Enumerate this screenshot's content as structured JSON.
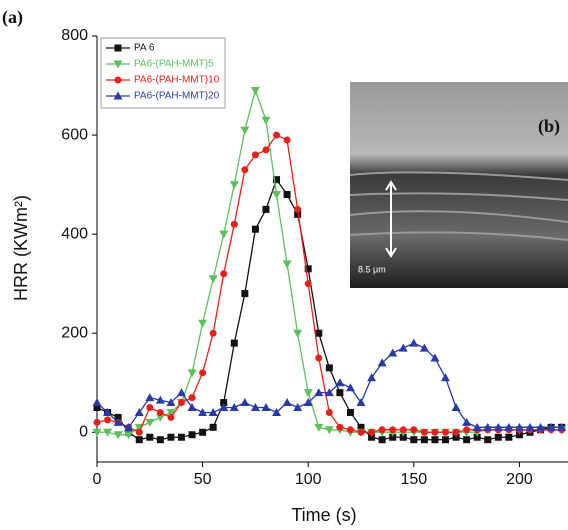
{
  "chart_data": {
    "type": "line",
    "panel_label": "(a)",
    "inset_label": "(b)",
    "inset_scale": "8.5 μm",
    "xlabel": "Time (s)",
    "ylabel": "HRR (KWm²)",
    "xlim": [
      0,
      223
    ],
    "ylim": [
      -60,
      800
    ],
    "xticks": [
      0,
      50,
      100,
      150,
      200
    ],
    "yticks": [
      0,
      200,
      400,
      600,
      800
    ],
    "x": [
      0,
      5,
      10,
      15,
      20,
      25,
      30,
      35,
      40,
      45,
      50,
      55,
      60,
      65,
      70,
      75,
      80,
      85,
      90,
      95,
      100,
      105,
      110,
      115,
      120,
      125,
      130,
      135,
      140,
      145,
      150,
      155,
      160,
      165,
      170,
      175,
      180,
      185,
      190,
      195,
      200,
      205,
      210,
      215,
      220
    ],
    "series": [
      {
        "name": "PA 6",
        "color": "#111111",
        "marker": "square",
        "values": [
          50,
          40,
          30,
          0,
          -15,
          -10,
          -15,
          -10,
          -10,
          -5,
          0,
          10,
          60,
          180,
          280,
          410,
          450,
          510,
          480,
          440,
          330,
          200,
          130,
          80,
          40,
          10,
          -10,
          -15,
          -10,
          -10,
          -15,
          -15,
          -15,
          -15,
          -10,
          -15,
          -10,
          -15,
          -10,
          -10,
          -5,
          0,
          5,
          10,
          10
        ]
      },
      {
        "name": "PA6-(PAH-MMT)5",
        "color": "#5cc05c",
        "marker": "down",
        "values": [
          0,
          0,
          -5,
          -5,
          10,
          20,
          30,
          40,
          60,
          120,
          220,
          310,
          400,
          500,
          610,
          690,
          630,
          480,
          340,
          200,
          80,
          10,
          5,
          5,
          0,
          0,
          0,
          0,
          0,
          0,
          0,
          0,
          0,
          0,
          0,
          0,
          0,
          5,
          5,
          5,
          5,
          5,
          5,
          5,
          5
        ]
      },
      {
        "name": "PA6-(PAH-MMT)10",
        "color": "#e8201c",
        "marker": "circle",
        "values": [
          20,
          25,
          20,
          10,
          0,
          50,
          40,
          30,
          60,
          70,
          120,
          200,
          320,
          420,
          530,
          560,
          570,
          600,
          590,
          450,
          300,
          150,
          40,
          10,
          5,
          0,
          0,
          5,
          5,
          5,
          5,
          0,
          0,
          0,
          0,
          5,
          5,
          5,
          5,
          5,
          5,
          5,
          5,
          5,
          5
        ]
      },
      {
        "name": "PA6-(PAH-MMT)20",
        "color": "#2a3aa8",
        "marker": "up",
        "values": [
          60,
          40,
          20,
          10,
          40,
          70,
          65,
          60,
          80,
          50,
          40,
          40,
          50,
          50,
          60,
          50,
          50,
          40,
          60,
          50,
          60,
          80,
          80,
          100,
          90,
          60,
          110,
          140,
          160,
          170,
          180,
          170,
          150,
          110,
          50,
          20,
          10,
          10,
          10,
          10,
          10,
          10,
          10,
          10,
          10
        ]
      }
    ]
  }
}
